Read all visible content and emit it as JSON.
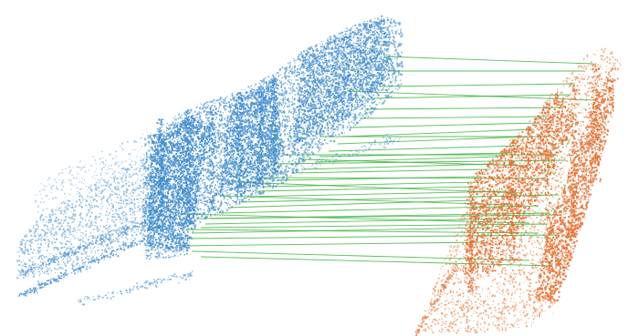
{
  "colors": {
    "background": "#ffffff",
    "source_cloud": "#3a87c9",
    "target_cloud": "#e06a28",
    "correspondences": "#3cb43c"
  }
}
